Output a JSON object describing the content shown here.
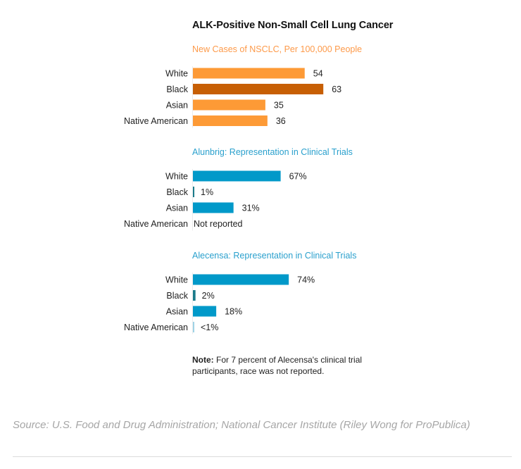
{
  "title": "ALK-Positive Non-Small Cell Lung Cancer",
  "colors": {
    "orange": "#fd9a36",
    "orange_highlight": "#c75f04",
    "teal": "#0199c9",
    "teal_highlight": "#1b7b8a",
    "teal_light": "#9fd3e6",
    "orange_title": "#fd9a4a",
    "teal_title": "#2aa0cd"
  },
  "chart_data": [
    {
      "type": "bar",
      "orientation": "horizontal",
      "title": "New Cases of NSCLC, Per 100,000 People",
      "categories": [
        "White",
        "Black",
        "Asian",
        "Native American"
      ],
      "values": [
        54,
        63,
        35,
        36
      ],
      "value_labels": [
        "54",
        "63",
        "35",
        "36"
      ],
      "unit": "cases per 100,000",
      "highlight": "Black",
      "xlim": [
        0,
        63
      ]
    },
    {
      "type": "bar",
      "orientation": "horizontal",
      "title": "Alunbrig: Representation in Clinical Trials",
      "categories": [
        "White",
        "Black",
        "Asian",
        "Native American"
      ],
      "values": [
        67,
        1,
        31,
        null
      ],
      "value_labels": [
        "67%",
        "1%",
        "31%",
        "Not reported"
      ],
      "unit": "percent",
      "highlight": "Black",
      "xlim": [
        0,
        100
      ]
    },
    {
      "type": "bar",
      "orientation": "horizontal",
      "title": "Alecensa: Representation in Clinical Trials",
      "categories": [
        "White",
        "Black",
        "Asian",
        "Native American"
      ],
      "values": [
        74,
        2,
        18,
        0.5
      ],
      "value_labels": [
        "74%",
        "2%",
        "18%",
        "<1%"
      ],
      "unit": "percent",
      "highlight": "Black",
      "xlim": [
        0,
        100
      ]
    }
  ],
  "note": {
    "label": "Note:",
    "text": " For 7 percent of Alecensa's clinical trial participants, race was not reported."
  },
  "source": "Source: U.S. Food and Drug Administration; National Cancer Institute (Riley Wong for ProPublica)"
}
